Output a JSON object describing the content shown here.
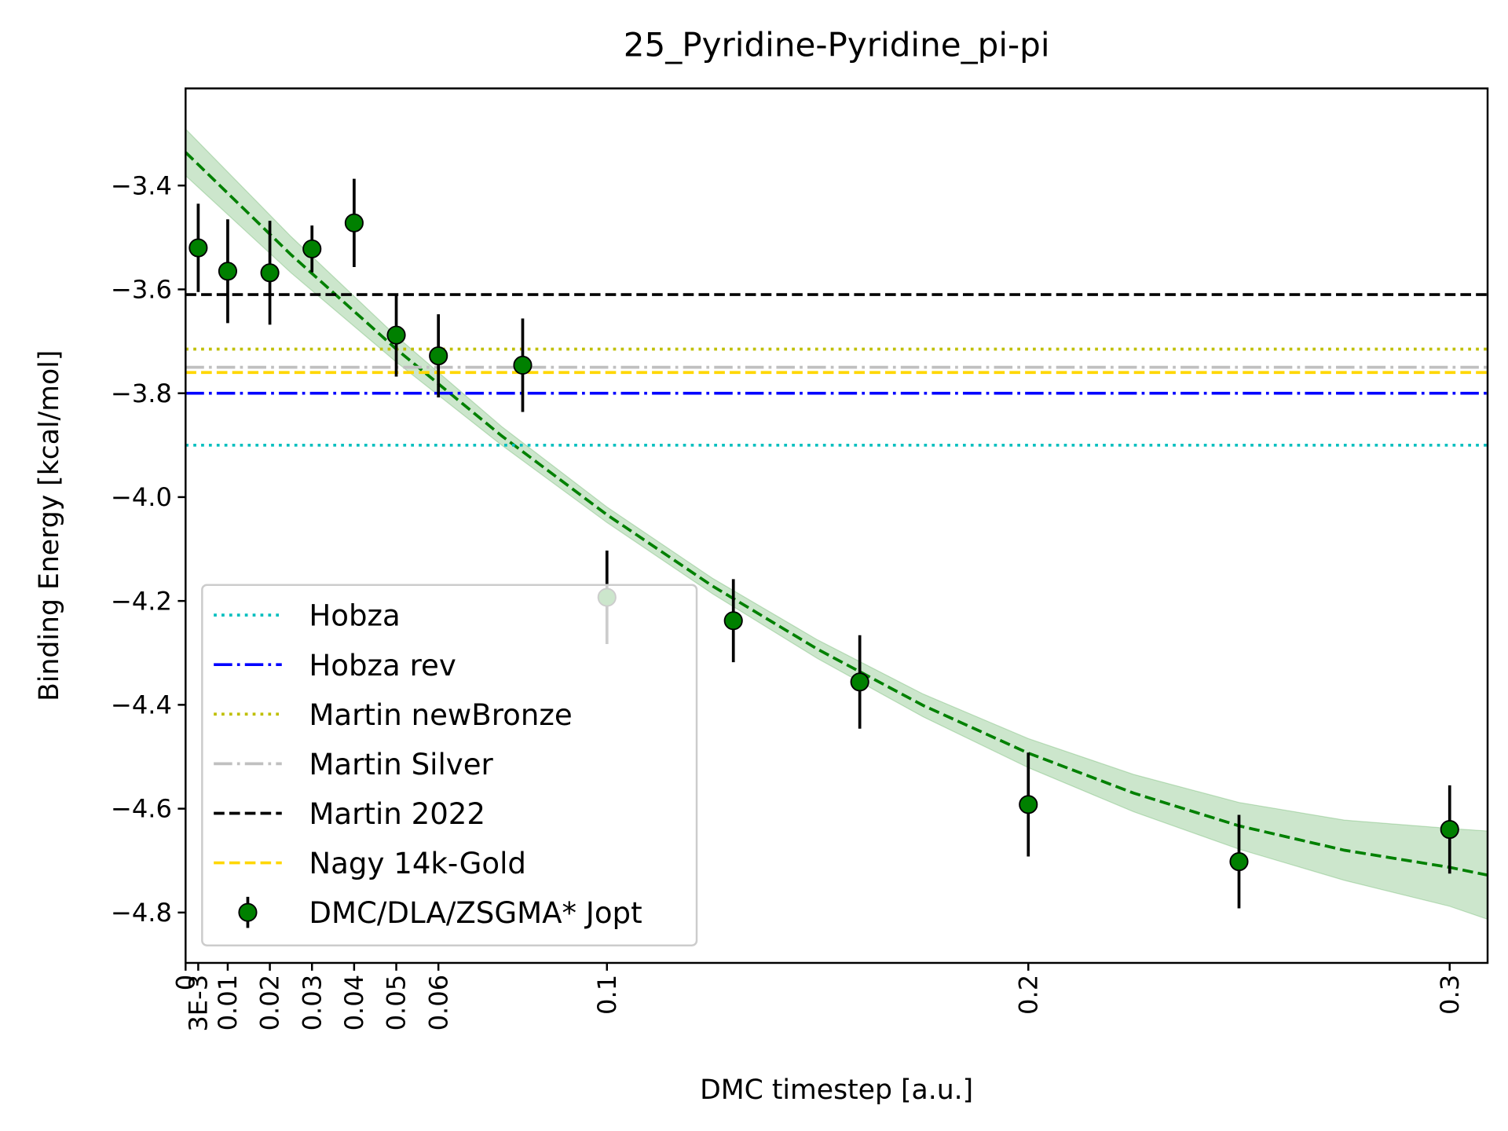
{
  "chart_data": {
    "type": "errorbar",
    "title": "25_Pyridine-Pyridine_pi-pi",
    "x_label": "DMC timestep [a.u.]",
    "y_label": "Binding Energy [kcal/mol]",
    "xlim": [
      0,
      0.309
    ],
    "ylim": [
      -4.897,
      -3.213
    ],
    "xticks": [
      0,
      {
        "value": 0.003,
        "label": "3E-3"
      },
      0.01,
      0.02,
      0.03,
      0.04,
      0.05,
      0.06,
      0.1,
      0.2,
      0.3
    ],
    "yticks": [
      {
        "value": -4.8,
        "label": "−4.8"
      },
      {
        "value": -4.6,
        "label": "−4.6"
      },
      {
        "value": -4.4,
        "label": "−4.4"
      },
      {
        "value": -4.2,
        "label": "−4.2"
      },
      {
        "value": -4.0,
        "label": "−4.0"
      },
      {
        "value": -3.8,
        "label": "−3.8"
      },
      {
        "value": -3.6,
        "label": "−3.6"
      },
      {
        "value": -3.4,
        "label": "−3.4"
      }
    ],
    "legend_position": "lower left",
    "reference_lines": [
      {
        "name": "Hobza",
        "color": "#00bfbf",
        "linestyle": "dotted",
        "value": -3.9
      },
      {
        "name": "Hobza rev",
        "color": "#0000ff",
        "linestyle": "dashdot",
        "value": -3.8
      },
      {
        "name": "Martin newBronze",
        "color": "#bfbf00",
        "linestyle": "dotted",
        "value": -3.715
      },
      {
        "name": "Martin Silver",
        "color": "#c0c0c0",
        "linestyle": "dashdot",
        "value": -3.75
      },
      {
        "name": "Martin 2022",
        "color": "#000000",
        "linestyle": "dashed",
        "value": -3.61
      },
      {
        "name": "Nagy 14k-Gold",
        "color": "#ffd700",
        "linestyle": "dashed",
        "value": -3.76
      }
    ],
    "series": [
      {
        "name": "DMC/DLA/ZSGMA* Jopt",
        "color": "#008000",
        "x": [
          0.003,
          0.01,
          0.02,
          0.03,
          0.04,
          0.05,
          0.06,
          0.08,
          0.1,
          0.13,
          0.16,
          0.2,
          0.25,
          0.3
        ],
        "values": [
          -3.52,
          -3.565,
          -3.568,
          -3.522,
          -3.472,
          -3.688,
          -3.728,
          -3.746,
          -4.193,
          -4.238,
          -4.356,
          -4.592,
          -4.702,
          -4.64
        ],
        "errors": [
          0.085,
          0.1,
          0.1,
          0.045,
          0.085,
          0.08,
          0.08,
          0.09,
          0.09,
          0.08,
          0.09,
          0.1,
          0.09,
          0.085
        ]
      }
    ],
    "fit": {
      "color": "#008000",
      "x": [
        0,
        0.025,
        0.05,
        0.075,
        0.1,
        0.125,
        0.15,
        0.175,
        0.2,
        0.225,
        0.25,
        0.275,
        0.3,
        0.309
      ],
      "values": [
        -3.336,
        -3.533,
        -3.715,
        -3.882,
        -4.034,
        -4.171,
        -4.293,
        -4.401,
        -4.493,
        -4.57,
        -4.633,
        -4.68,
        -4.713,
        -4.728
      ],
      "lower": [
        -3.381,
        -3.568,
        -3.74,
        -3.9,
        -4.049,
        -4.186,
        -4.311,
        -4.423,
        -4.521,
        -4.606,
        -4.678,
        -4.738,
        -4.788,
        -4.813
      ],
      "upper": [
        -3.291,
        -3.498,
        -3.69,
        -3.864,
        -4.019,
        -4.156,
        -4.275,
        -4.379,
        -4.465,
        -4.534,
        -4.588,
        -4.622,
        -4.638,
        -4.643
      ]
    }
  }
}
